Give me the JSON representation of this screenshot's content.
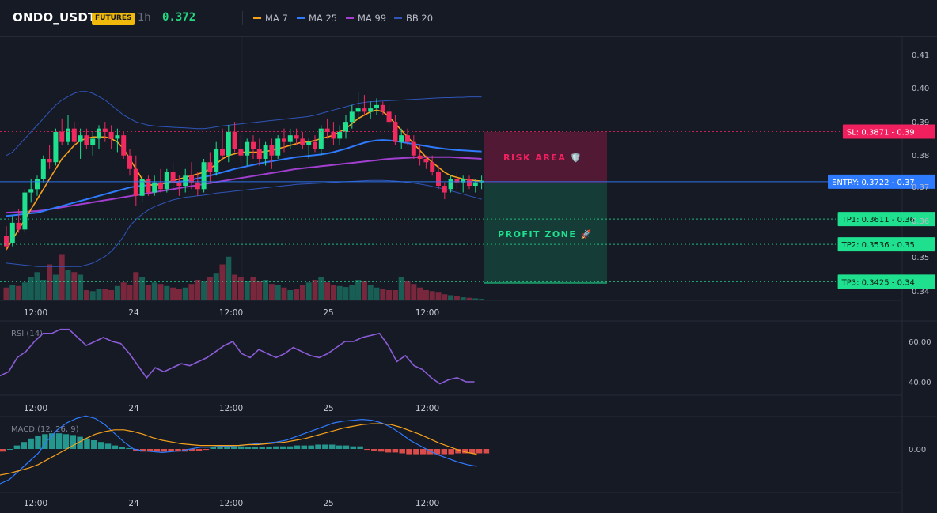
{
  "header": {
    "symbol": "ONDO_USDT",
    "badge": "FUTURES",
    "timeframe": "1h",
    "last_price": "0.372",
    "legend": [
      {
        "label": "MA 7",
        "color": "#f7a21b"
      },
      {
        "label": "MA 25",
        "color": "#2f7bff"
      },
      {
        "label": "MA 99",
        "color": "#a23fd0"
      },
      {
        "label": "BB 20",
        "color": "#2f55b8"
      }
    ]
  },
  "colors": {
    "up": "#1fe08e",
    "down": "#f02a5e",
    "bg": "#161a25",
    "grid": "#262b38"
  },
  "price_axis": {
    "ticks": [
      "0.41",
      "0.40",
      "0.39",
      "0.38",
      "0.37",
      "0.36",
      "0.35",
      "0.34"
    ],
    "min": 0.3375,
    "max": 0.41
  },
  "time_axis": {
    "labels": [
      "12:00",
      "24",
      "12:00",
      "25",
      "12:00"
    ]
  },
  "levels": [
    {
      "name": "sl",
      "label": "SL: 0.3871",
      "tick": "0.39",
      "price": 0.3871,
      "color": "#f0205f"
    },
    {
      "name": "entry",
      "label": "ENTRY: 0.3722",
      "tick": "0.37",
      "price": 0.3722,
      "color": "#2f7bff"
    },
    {
      "name": "tp1",
      "label": "TP1: 0.3611",
      "tick": "0.36",
      "price": 0.3611,
      "color": "#1fe08e"
    },
    {
      "name": "tp2",
      "label": "TP2: 0.3536",
      "tick": "0.35",
      "price": 0.3536,
      "color": "#1fe08e"
    },
    {
      "name": "tp3",
      "label": "TP3: 0.3425",
      "tick": "0.34",
      "price": 0.3425,
      "color": "#1fe08e"
    }
  ],
  "zones": {
    "risk": "RISK AREA 🛡️",
    "profit": "PROFIT ZONE 🚀"
  },
  "rsi": {
    "label": "RSI (14)",
    "ticks": [
      "60.00",
      "40.00"
    ]
  },
  "macd": {
    "label": "MACD (12, 26, 9)",
    "ticks": [
      "0.00"
    ]
  },
  "chart_data": {
    "type": "candlestick",
    "ohlc": [
      [
        0.356,
        0.359,
        0.352,
        0.353
      ],
      [
        0.354,
        0.362,
        0.353,
        0.36
      ],
      [
        0.36,
        0.364,
        0.357,
        0.358
      ],
      [
        0.358,
        0.37,
        0.357,
        0.369
      ],
      [
        0.369,
        0.373,
        0.366,
        0.37
      ],
      [
        0.37,
        0.374,
        0.368,
        0.373
      ],
      [
        0.373,
        0.38,
        0.372,
        0.379
      ],
      [
        0.379,
        0.383,
        0.376,
        0.378
      ],
      [
        0.378,
        0.388,
        0.377,
        0.387
      ],
      [
        0.387,
        0.391,
        0.383,
        0.384
      ],
      [
        0.384,
        0.392,
        0.383,
        0.388
      ],
      [
        0.388,
        0.39,
        0.383,
        0.384
      ],
      [
        0.384,
        0.388,
        0.379,
        0.386
      ],
      [
        0.386,
        0.388,
        0.382,
        0.383
      ],
      [
        0.383,
        0.387,
        0.38,
        0.385
      ],
      [
        0.385,
        0.389,
        0.382,
        0.388
      ],
      [
        0.388,
        0.39,
        0.384,
        0.387
      ],
      [
        0.387,
        0.389,
        0.382,
        0.385
      ],
      [
        0.385,
        0.388,
        0.381,
        0.386
      ],
      [
        0.386,
        0.387,
        0.379,
        0.38
      ],
      [
        0.38,
        0.382,
        0.374,
        0.376
      ],
      [
        0.376,
        0.38,
        0.365,
        0.368
      ],
      [
        0.368,
        0.374,
        0.366,
        0.373
      ],
      [
        0.373,
        0.374,
        0.368,
        0.369
      ],
      [
        0.369,
        0.374,
        0.368,
        0.372
      ],
      [
        0.372,
        0.376,
        0.369,
        0.37
      ],
      [
        0.37,
        0.376,
        0.369,
        0.375
      ],
      [
        0.375,
        0.378,
        0.37,
        0.372
      ],
      [
        0.372,
        0.374,
        0.368,
        0.371
      ],
      [
        0.371,
        0.376,
        0.369,
        0.374
      ],
      [
        0.374,
        0.378,
        0.37,
        0.372
      ],
      [
        0.372,
        0.375,
        0.368,
        0.37
      ],
      [
        0.37,
        0.379,
        0.369,
        0.378
      ],
      [
        0.378,
        0.381,
        0.372,
        0.375
      ],
      [
        0.375,
        0.384,
        0.374,
        0.382
      ],
      [
        0.382,
        0.388,
        0.379,
        0.38
      ],
      [
        0.38,
        0.389,
        0.378,
        0.387
      ],
      [
        0.387,
        0.39,
        0.381,
        0.382
      ],
      [
        0.382,
        0.386,
        0.378,
        0.38
      ],
      [
        0.38,
        0.385,
        0.377,
        0.384
      ],
      [
        0.384,
        0.386,
        0.379,
        0.382
      ],
      [
        0.382,
        0.385,
        0.377,
        0.379
      ],
      [
        0.379,
        0.384,
        0.377,
        0.383
      ],
      [
        0.383,
        0.385,
        0.376,
        0.38
      ],
      [
        0.38,
        0.386,
        0.379,
        0.385
      ],
      [
        0.385,
        0.388,
        0.381,
        0.384
      ],
      [
        0.384,
        0.388,
        0.382,
        0.386
      ],
      [
        0.386,
        0.388,
        0.383,
        0.385
      ],
      [
        0.385,
        0.387,
        0.382,
        0.383
      ],
      [
        0.383,
        0.385,
        0.379,
        0.384
      ],
      [
        0.384,
        0.386,
        0.381,
        0.382
      ],
      [
        0.382,
        0.389,
        0.38,
        0.388
      ],
      [
        0.388,
        0.391,
        0.385,
        0.387
      ],
      [
        0.387,
        0.39,
        0.383,
        0.385
      ],
      [
        0.385,
        0.389,
        0.383,
        0.387
      ],
      [
        0.387,
        0.392,
        0.385,
        0.39
      ],
      [
        0.39,
        0.395,
        0.388,
        0.393
      ],
      [
        0.393,
        0.399,
        0.391,
        0.394
      ],
      [
        0.394,
        0.398,
        0.392,
        0.393
      ],
      [
        0.393,
        0.396,
        0.391,
        0.394
      ],
      [
        0.394,
        0.397,
        0.392,
        0.395
      ],
      [
        0.395,
        0.396,
        0.392,
        0.393
      ],
      [
        0.393,
        0.395,
        0.389,
        0.39
      ],
      [
        0.39,
        0.392,
        0.383,
        0.384
      ],
      [
        0.384,
        0.388,
        0.382,
        0.386
      ],
      [
        0.386,
        0.388,
        0.383,
        0.384
      ],
      [
        0.384,
        0.386,
        0.379,
        0.38
      ],
      [
        0.38,
        0.383,
        0.377,
        0.379
      ],
      [
        0.379,
        0.38,
        0.376,
        0.378
      ],
      [
        0.378,
        0.38,
        0.374,
        0.375
      ],
      [
        0.375,
        0.377,
        0.37,
        0.371
      ],
      [
        0.371,
        0.372,
        0.367,
        0.369
      ],
      [
        0.37,
        0.374,
        0.369,
        0.373
      ],
      [
        0.373,
        0.375,
        0.37,
        0.372
      ],
      [
        0.372,
        0.374,
        0.369,
        0.373
      ],
      [
        0.373,
        0.374,
        0.37,
        0.371
      ],
      [
        0.371,
        0.373,
        0.369,
        0.372
      ],
      [
        0.372,
        0.374,
        0.37,
        0.3725
      ]
    ],
    "volume": [
      0.25,
      0.3,
      0.28,
      0.35,
      0.45,
      0.55,
      0.4,
      0.7,
      0.5,
      0.9,
      0.6,
      0.55,
      0.5,
      0.2,
      0.18,
      0.22,
      0.22,
      0.2,
      0.28,
      0.35,
      0.3,
      0.55,
      0.45,
      0.3,
      0.35,
      0.32,
      0.28,
      0.25,
      0.22,
      0.25,
      0.32,
      0.4,
      0.38,
      0.45,
      0.52,
      0.7,
      0.85,
      0.5,
      0.45,
      0.38,
      0.45,
      0.38,
      0.4,
      0.32,
      0.3,
      0.25,
      0.2,
      0.22,
      0.3,
      0.35,
      0.4,
      0.45,
      0.35,
      0.3,
      0.28,
      0.26,
      0.3,
      0.4,
      0.38,
      0.3,
      0.25,
      0.22,
      0.2,
      0.2,
      0.45,
      0.38,
      0.32,
      0.25,
      0.2,
      0.18,
      0.15,
      0.12,
      0.1,
      0.08,
      0.06,
      0.05,
      0.04,
      0.03
    ],
    "ma7": [
      0.352,
      0.355,
      0.358,
      0.361,
      0.364,
      0.367,
      0.37,
      0.373,
      0.376,
      0.379,
      0.381,
      0.383,
      0.3845,
      0.385,
      0.3855,
      0.3855,
      0.3855,
      0.385,
      0.384,
      0.382,
      0.379,
      0.376,
      0.373,
      0.3715,
      0.371,
      0.3715,
      0.372,
      0.3725,
      0.373,
      0.3735,
      0.374,
      0.3745,
      0.375,
      0.376,
      0.3775,
      0.379,
      0.38,
      0.3805,
      0.381,
      0.381,
      0.381,
      0.381,
      0.3812,
      0.3815,
      0.382,
      0.3825,
      0.383,
      0.3835,
      0.384,
      0.384,
      0.3845,
      0.385,
      0.3855,
      0.386,
      0.387,
      0.388,
      0.3895,
      0.391,
      0.392,
      0.393,
      0.3935,
      0.393,
      0.3915,
      0.3895,
      0.3875,
      0.3855,
      0.3835,
      0.3815,
      0.3795,
      0.378,
      0.3765,
      0.375,
      0.374,
      0.3735,
      0.373,
      0.3728,
      0.3725,
      0.3724
    ],
    "ma25": [
      0.362,
      0.3622,
      0.3624,
      0.3626,
      0.3628,
      0.363,
      0.3635,
      0.364,
      0.3645,
      0.365,
      0.3655,
      0.366,
      0.3665,
      0.367,
      0.3675,
      0.368,
      0.3685,
      0.369,
      0.3695,
      0.37,
      0.3705,
      0.3708,
      0.371,
      0.3712,
      0.3714,
      0.3716,
      0.3718,
      0.372,
      0.3722,
      0.3724,
      0.3728,
      0.3732,
      0.3736,
      0.374,
      0.3745,
      0.375,
      0.3755,
      0.376,
      0.3764,
      0.3768,
      0.3772,
      0.3776,
      0.378,
      0.3783,
      0.3786,
      0.3789,
      0.3792,
      0.3795,
      0.3797,
      0.3799,
      0.3801,
      0.3803,
      0.3806,
      0.381,
      0.3815,
      0.382,
      0.3826,
      0.3832,
      0.3838,
      0.3842,
      0.3845,
      0.3846,
      0.3845,
      0.3843,
      0.384,
      0.3837,
      0.3834,
      0.3831,
      0.3828,
      0.3825,
      0.3822,
      0.382,
      0.3818,
      0.3816,
      0.3815,
      0.3814,
      0.3813,
      0.3812
    ],
    "ma99": [
      0.363,
      0.3631,
      0.3632,
      0.3633,
      0.3634,
      0.3635,
      0.3637,
      0.364,
      0.3643,
      0.3646,
      0.3649,
      0.3652,
      0.3655,
      0.3658,
      0.3661,
      0.3664,
      0.3667,
      0.367,
      0.3673,
      0.3676,
      0.3679,
      0.3682,
      0.3685,
      0.3688,
      0.3691,
      0.3694,
      0.3697,
      0.37,
      0.3703,
      0.3706,
      0.3709,
      0.3712,
      0.3715,
      0.3718,
      0.3721,
      0.3724,
      0.3727,
      0.373,
      0.3733,
      0.3736,
      0.3739,
      0.3742,
      0.3745,
      0.3748,
      0.3751,
      0.3754,
      0.3757,
      0.376,
      0.3762,
      0.3764,
      0.3766,
      0.3768,
      0.377,
      0.3772,
      0.3774,
      0.3776,
      0.3778,
      0.378,
      0.3782,
      0.3784,
      0.3786,
      0.3788,
      0.379,
      0.3791,
      0.3792,
      0.3793,
      0.3794,
      0.3795,
      0.3795,
      0.3795,
      0.3795,
      0.3795,
      0.3795,
      0.3794,
      0.3793,
      0.3792,
      0.3791,
      0.379
    ],
    "bb_upper": [
      0.38,
      0.381,
      0.383,
      0.385,
      0.387,
      0.389,
      0.391,
      0.393,
      0.395,
      0.3965,
      0.3975,
      0.3985,
      0.399,
      0.399,
      0.3985,
      0.3975,
      0.3965,
      0.395,
      0.3935,
      0.392,
      0.391,
      0.39,
      0.3895,
      0.389,
      0.3888,
      0.3886,
      0.3885,
      0.3884,
      0.3883,
      0.3882,
      0.3881,
      0.388,
      0.388,
      0.3882,
      0.3885,
      0.3888,
      0.389,
      0.3892,
      0.3894,
      0.3896,
      0.3898,
      0.39,
      0.3902,
      0.3904,
      0.3906,
      0.3908,
      0.391,
      0.3912,
      0.3914,
      0.3916,
      0.392,
      0.3925,
      0.393,
      0.3935,
      0.394,
      0.3945,
      0.395,
      0.3955,
      0.3958,
      0.396,
      0.3961,
      0.3962,
      0.3963,
      0.3964,
      0.3965,
      0.3966,
      0.3967,
      0.3968,
      0.3969,
      0.397,
      0.3971,
      0.3972,
      0.3972,
      0.3973,
      0.3973,
      0.3974,
      0.3974,
      0.3974
    ],
    "bb_lower": [
      0.348,
      0.3478,
      0.3476,
      0.3474,
      0.3472,
      0.347,
      0.347,
      0.347,
      0.347,
      0.347,
      0.347,
      0.347,
      0.347,
      0.3475,
      0.348,
      0.349,
      0.35,
      0.3515,
      0.3535,
      0.356,
      0.359,
      0.361,
      0.3625,
      0.3638,
      0.3648,
      0.3655,
      0.3662,
      0.3668,
      0.3672,
      0.3676,
      0.3678,
      0.368,
      0.3682,
      0.3685,
      0.3688,
      0.369,
      0.3692,
      0.3694,
      0.3696,
      0.3698,
      0.37,
      0.3702,
      0.3704,
      0.3706,
      0.3708,
      0.371,
      0.3712,
      0.3714,
      0.3715,
      0.3716,
      0.3717,
      0.3718,
      0.3719,
      0.372,
      0.3721,
      0.3722,
      0.3723,
      0.3724,
      0.3725,
      0.3726,
      0.3726,
      0.3726,
      0.3725,
      0.3724,
      0.3722,
      0.372,
      0.3718,
      0.3715,
      0.3712,
      0.3708,
      0.3704,
      0.37,
      0.3695,
      0.369,
      0.3685,
      0.368,
      0.3675,
      0.367
    ],
    "rsi": [
      43,
      45,
      52,
      55,
      60,
      64,
      64,
      66,
      66,
      62,
      58,
      60,
      62,
      60,
      59,
      54,
      48,
      42,
      47,
      45,
      47,
      49,
      48,
      50,
      52,
      55,
      58,
      60,
      54,
      52,
      56,
      54,
      52,
      54,
      57,
      55,
      53,
      52,
      54,
      57,
      60,
      60,
      62,
      63,
      64,
      58,
      50,
      53,
      48,
      46,
      42,
      39,
      41,
      42,
      40,
      40
    ],
    "macd": [
      -0.004,
      -0.0035,
      -0.0025,
      -0.0015,
      -0.0005,
      0.001,
      0.0022,
      0.003,
      0.0035,
      0.0038,
      0.0035,
      0.0028,
      0.0018,
      0.0008,
      0.0,
      -0.0002,
      -0.0003,
      -0.0004,
      -0.0003,
      -0.0002,
      0.0,
      0.0002,
      0.0002,
      0.0003,
      0.0003,
      0.0004,
      0.0005,
      0.0006,
      0.0007,
      0.0008,
      0.001,
      0.0014,
      0.0018,
      0.0022,
      0.0026,
      0.003,
      0.0032,
      0.0033,
      0.0034,
      0.0033,
      0.003,
      0.0025,
      0.0018,
      0.001,
      0.0004,
      -0.0002,
      -0.0007,
      -0.0011,
      -0.0015,
      -0.0018,
      -0.002
    ],
    "macd_signal": [
      -0.003,
      -0.0028,
      -0.0025,
      -0.0022,
      -0.0018,
      -0.0012,
      -0.0006,
      0.0,
      0.0006,
      0.0012,
      0.0017,
      0.002,
      0.0022,
      0.0022,
      0.002,
      0.0017,
      0.0013,
      0.001,
      0.0008,
      0.0006,
      0.0005,
      0.0004,
      0.0004,
      0.0004,
      0.0004,
      0.0004,
      0.0005,
      0.0005,
      0.0006,
      0.0007,
      0.0008,
      0.001,
      0.0012,
      0.0015,
      0.0018,
      0.0021,
      0.0024,
      0.0026,
      0.0028,
      0.0029,
      0.0029,
      0.0028,
      0.0025,
      0.0021,
      0.0017,
      0.0012,
      0.0007,
      0.0003,
      -0.0001,
      -0.0004,
      -0.0006
    ],
    "macd_hist": [
      -0.0003,
      0.0,
      0.0004,
      0.0008,
      0.0012,
      0.0015,
      0.0017,
      0.0018,
      0.0018,
      0.0017,
      0.0016,
      0.0014,
      0.0012,
      0.001,
      0.0008,
      0.0006,
      0.0004,
      0.0002,
      0.0001,
      -0.0002,
      -0.0003,
      -0.0003,
      -0.0003,
      -0.0003,
      -0.0003,
      -0.0003,
      -0.0003,
      -0.0002,
      -0.0002,
      -0.0001,
      0.0002,
      0.0003,
      0.0003,
      0.0003,
      0.0003,
      0.0002,
      0.0002,
      0.0002,
      0.0002,
      0.0003,
      0.0003,
      0.0003,
      0.0004,
      0.0004,
      0.0004,
      0.0005,
      0.0005,
      0.0005,
      0.0004,
      0.0004,
      0.0003,
      0.0003,
      -0.0001,
      -0.0002,
      -0.0003,
      -0.0004,
      -0.0004,
      -0.0005,
      -0.0006,
      -0.0006,
      -0.0006,
      -0.0006,
      -0.0006,
      -0.0006,
      -0.0006,
      -0.0005,
      -0.0005,
      -0.0005,
      -0.0005,
      -0.0005
    ]
  }
}
